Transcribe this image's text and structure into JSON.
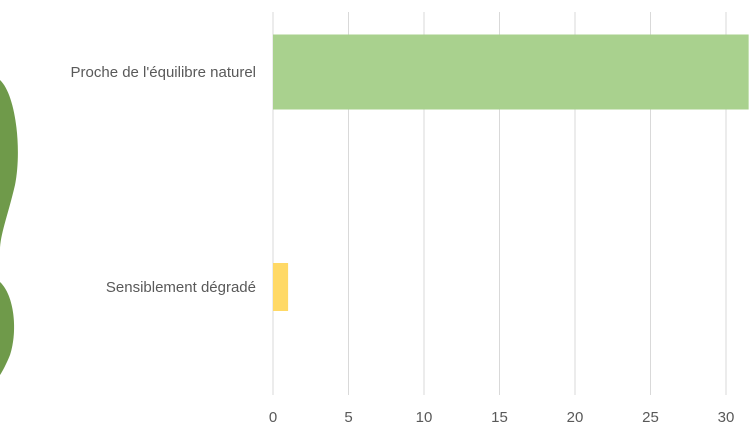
{
  "chart_data": {
    "type": "bar",
    "orientation": "horizontal",
    "title": "",
    "xlabel": "",
    "ylabel": "",
    "categories": [
      "Proche de l'équilibre naturel",
      "Sensiblement dégradé"
    ],
    "values": [
      31.5,
      1
    ],
    "bar_colors": [
      "#a9d18e",
      "#ffd966"
    ],
    "xlim": [
      0,
      32
    ],
    "ticks": [
      0,
      5,
      10,
      15,
      20,
      25,
      30
    ],
    "grid": true,
    "legend": "none"
  },
  "colors": {
    "decorative_green": "#6f9a4a",
    "gridline": "#d9d9d9",
    "text": "#595959"
  }
}
